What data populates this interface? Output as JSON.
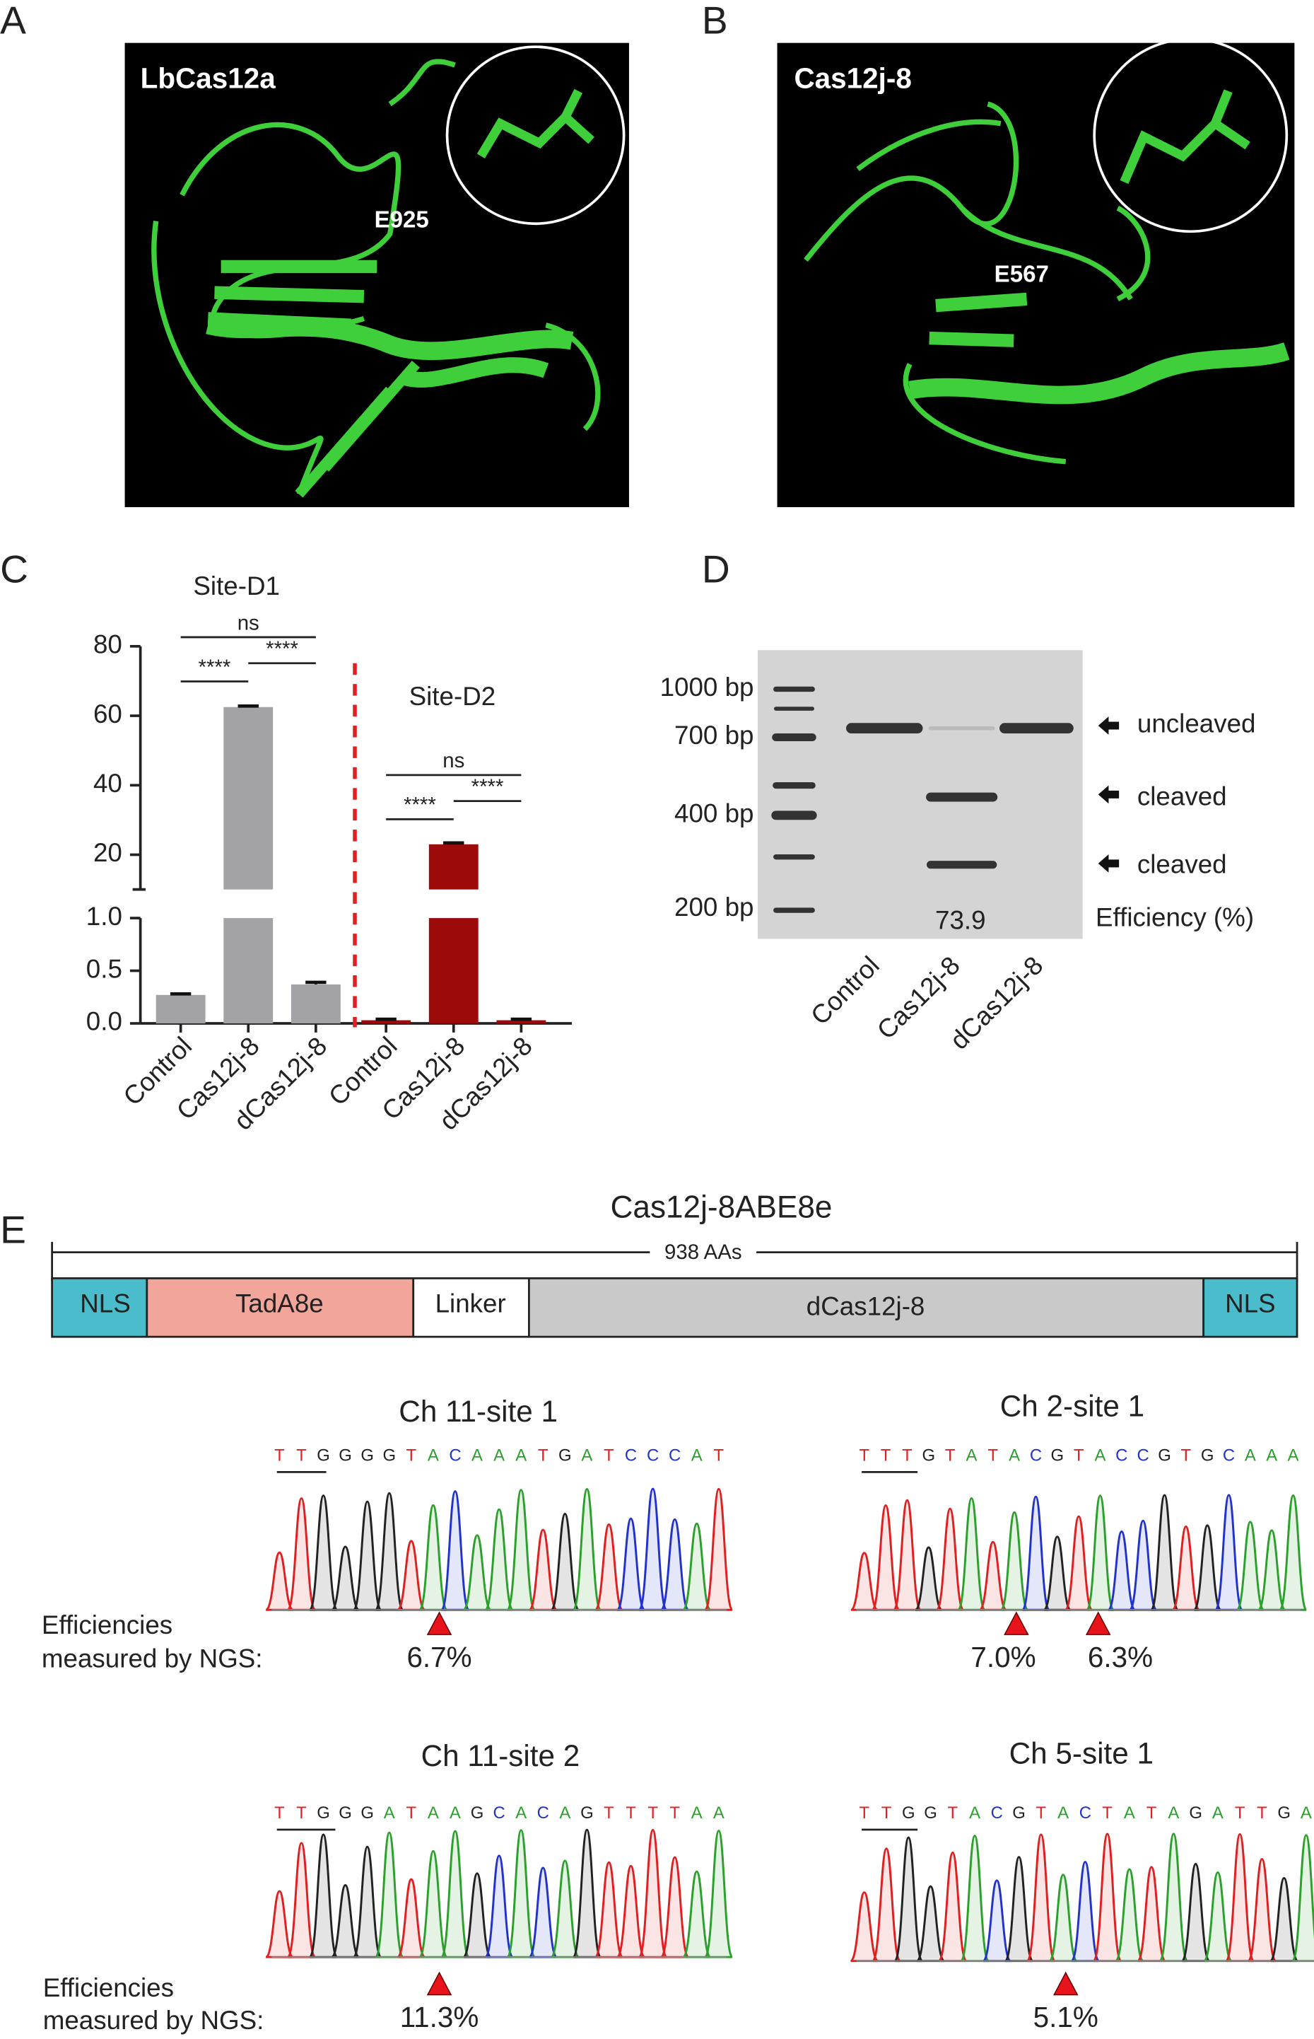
{
  "panel_labels": [
    "A",
    "B",
    "C",
    "D",
    "E"
  ],
  "panel_a": {
    "protein": "LbCas12a",
    "residue": "E925"
  },
  "panel_b": {
    "protein": "Cas12j-8",
    "residue": "E567"
  },
  "chart_data": {
    "type": "bar",
    "groups": [
      {
        "name": "Site-D1",
        "color": "#a3a3a7",
        "categories": [
          "Control",
          "Cas12j-8",
          "dCas12j-8"
        ],
        "values": [
          0.27,
          62.5,
          0.37
        ],
        "errors": [
          0.01,
          0.3,
          0.02
        ],
        "significance": [
          "****",
          "****",
          "ns"
        ]
      },
      {
        "name": "Site-D2",
        "color": "#9c0a0a",
        "categories": [
          "Control",
          "Cas12j-8",
          "dCas12j-8"
        ],
        "values": [
          0.03,
          23.0,
          0.03
        ],
        "errors": [
          0.01,
          0.4,
          0.01
        ],
        "significance": [
          "****",
          "****",
          "ns"
        ]
      }
    ],
    "ylim_lower": [
      0,
      1
    ],
    "yticks_lower": [
      {
        "value": 0,
        "label": "0.0"
      },
      {
        "value": 0.5,
        "label": "0.5"
      },
      {
        "value": 1,
        "label": "1.0"
      }
    ],
    "ylim_upper": [
      10,
      80
    ],
    "yticks_upper": [
      20,
      40,
      60,
      80
    ]
  },
  "panel_d": {
    "ladder": [
      "1000 bp",
      "700 bp",
      "400 bp",
      "200 bp"
    ],
    "bands": [
      "uncleaved",
      "cleaved",
      "cleaved"
    ],
    "efficiency_label": "Efficiency (%)",
    "efficiency": "73.9",
    "lanes": [
      "Control",
      "Cas12j-8",
      "dCas12j-8"
    ]
  },
  "panel_e": {
    "construct": "Cas12j-8ABE8e",
    "length": "938 AAs",
    "domains": [
      "NLS",
      "TadA8e",
      "Linker",
      "dCas12j-8",
      "NLS"
    ],
    "ngs_label": [
      "Efficiencies",
      "measured by NGS:"
    ],
    "traces": [
      {
        "title": "Ch 11-site 1",
        "sequence": [
          "T",
          "T",
          "G",
          "G",
          "G",
          "G",
          "T",
          "A",
          "C",
          "A",
          "A",
          "A",
          "T",
          "G",
          "A",
          "T",
          "C",
          "C",
          "C",
          "A",
          "T"
        ],
        "efficiencies": [
          "6.7%"
        ]
      },
      {
        "title": "Ch 2-site 1",
        "sequence": [
          "T",
          "T",
          "T",
          "G",
          "T",
          "A",
          "T",
          "A",
          "C",
          "G",
          "T",
          "A",
          "C",
          "C",
          "G",
          "T",
          "G",
          "C",
          "A",
          "A",
          "A"
        ],
        "efficiencies": [
          "7.0%",
          "6.3%"
        ]
      },
      {
        "title": "Ch 11-site 2",
        "sequence": [
          "T",
          "T",
          "G",
          "G",
          "G",
          "A",
          "T",
          "A",
          "A",
          "G",
          "C",
          "A",
          "C",
          "A",
          "G",
          "T",
          "T",
          "T",
          "T",
          "A",
          "A"
        ],
        "efficiencies": [
          "11.3%"
        ]
      },
      {
        "title": "Ch 5-site 1",
        "sequence": [
          "T",
          "T",
          "G",
          "G",
          "T",
          "A",
          "C",
          "G",
          "T",
          "A",
          "C",
          "T",
          "A",
          "T",
          "A",
          "G",
          "A",
          "T",
          "T",
          "G",
          "A"
        ],
        "efficiencies": [
          "5.1%"
        ]
      }
    ]
  }
}
